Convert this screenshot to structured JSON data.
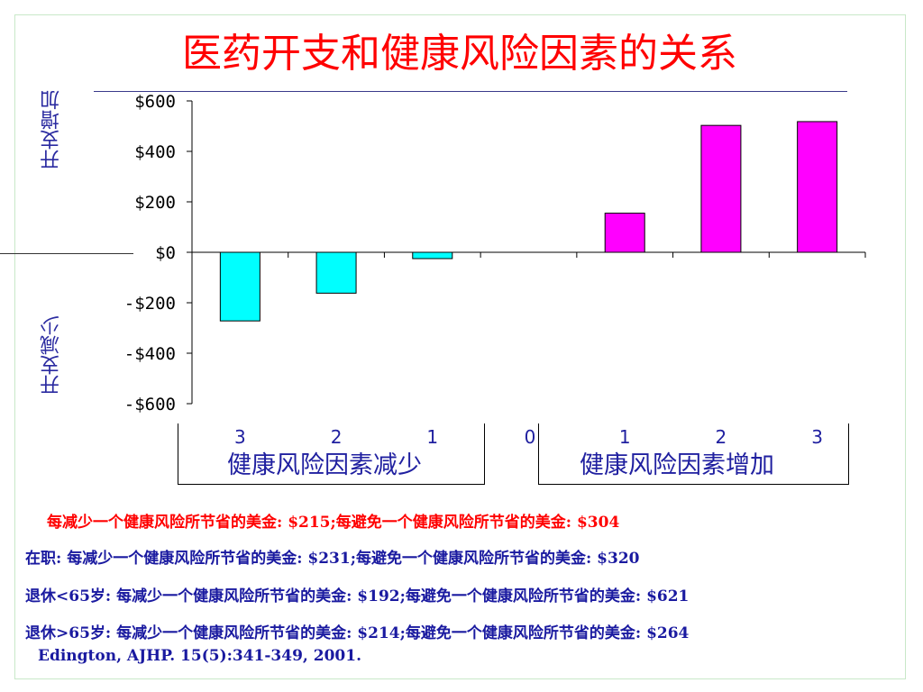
{
  "title": "医药开支和健康风险因素的关系",
  "y_label_top": "开支增加",
  "y_label_bottom": "开支减少",
  "group_left_label": "健康风险因素减少",
  "group_right_label": "健康风险因素增加",
  "colors": {
    "negative_bars": "#00ffff",
    "positive_bars": "#ff00ff",
    "title": "#ff0000",
    "text_blue": "#1a1aa0"
  },
  "chart_data": {
    "type": "bar",
    "categories": [
      "3",
      "2",
      "1",
      "0",
      "1",
      "2",
      "3"
    ],
    "values": [
      -272,
      -162,
      -25,
      0,
      155,
      503,
      518
    ],
    "ylim": [
      -600,
      600
    ],
    "y_ticks": [
      600,
      400,
      200,
      0,
      -200,
      -400,
      -600
    ],
    "y_tick_labels": [
      "$600",
      "$400",
      "$200",
      "$0",
      "-$200",
      "-$400",
      "-$600"
    ],
    "xlabel": "",
    "ylabel": ""
  },
  "notes": [
    "每减少一个健康风险所节省的美金: $215;每避免一个健康风险所节省的美金: $304",
    "在职: 每减少一个健康风险所节省的美金: $231;每避免一个健康风险所节省的美金: $320",
    "退休<65岁: 每减少一个健康风险所节省的美金: $192;每避免一个健康风险所节省的美金: $621",
    "退休>65岁: 每减少一个健康风险所节省的美金: $214;每避免一个健康风险所节省的美金: $264"
  ],
  "citation": "Edington, AJHP. 15(5):341-349, 2001."
}
